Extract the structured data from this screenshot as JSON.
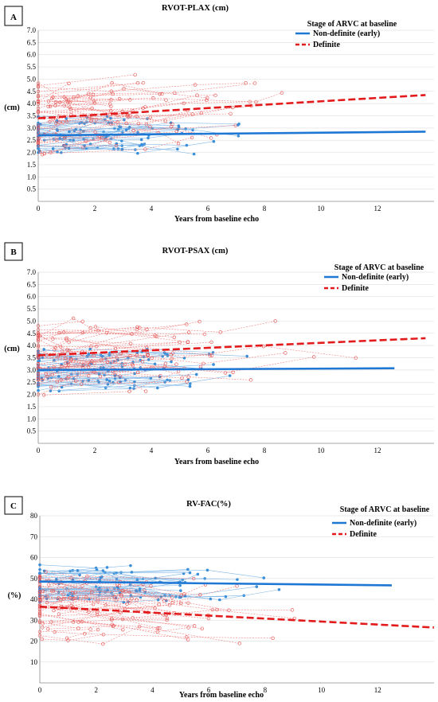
{
  "chart_data": [
    {
      "panel_label": "A",
      "type": "line",
      "title": "RVOT-PLAX (cm)",
      "xlabel": "Years from baseline echo",
      "ylabel": "(cm)",
      "xlim": [
        0,
        14
      ],
      "ylim": [
        0,
        7
      ],
      "x_ticks": [
        "0",
        "2",
        "4",
        "6",
        "8",
        "10",
        "12"
      ],
      "y_ticks": [
        "0.5",
        "1.0",
        "1.5",
        "2.0",
        "2.5",
        "3.0",
        "3.5",
        "4.0",
        "4.5",
        "5.0",
        "5.5",
        "6.0",
        "6.5",
        "7.0"
      ],
      "legend": {
        "title": "Stage of ARVC at baseline",
        "position": "top-right"
      },
      "series": [
        {
          "name": "Non-definite (early)",
          "color": "#1f77d4",
          "style": "solid",
          "trend": [
            [
              0,
              2.7
            ],
            [
              13.7,
              2.85
            ]
          ]
        },
        {
          "name": "Definite",
          "color": "#e31a1c",
          "style": "dashed",
          "trend": [
            [
              0,
              3.4
            ],
            [
              13.7,
              4.35
            ]
          ]
        }
      ]
    },
    {
      "panel_label": "B",
      "type": "line",
      "title": "RVOT-PSAX (cm)",
      "xlabel": "Years from baseline echo",
      "ylabel": "(cm)",
      "xlim": [
        0,
        14
      ],
      "ylim": [
        0,
        7
      ],
      "x_ticks": [
        "0",
        "2",
        "4",
        "6",
        "8",
        "10",
        "12"
      ],
      "y_ticks": [
        "0.5",
        "1.0",
        "1.5",
        "2.0",
        "2.5",
        "3.0",
        "3.5",
        "4.0",
        "4.5",
        "5.0",
        "5.5",
        "6.0",
        "6.5",
        "7.0"
      ],
      "legend": {
        "title": "Stage of ARVC at baseline",
        "position": "top-right"
      },
      "series": [
        {
          "name": "Non-definite (early)",
          "color": "#1f77d4",
          "style": "solid",
          "trend": [
            [
              0,
              3.0
            ],
            [
              12.6,
              3.07
            ]
          ]
        },
        {
          "name": "Definite",
          "color": "#e31a1c",
          "style": "dashed",
          "trend": [
            [
              0,
              3.6
            ],
            [
              13.7,
              4.3
            ]
          ]
        }
      ]
    },
    {
      "panel_label": "C",
      "type": "line",
      "title": "RV-FAC(%)",
      "xlabel": "Years from baseline echo",
      "ylabel": "(%)",
      "xlim": [
        0,
        14
      ],
      "ylim": [
        0,
        80
      ],
      "x_ticks": [
        "0",
        "2",
        "4",
        "6",
        "8",
        "10",
        "12"
      ],
      "y_ticks": [
        "10",
        "20",
        "30",
        "40",
        "50",
        "60",
        "70",
        "80"
      ],
      "legend": {
        "title": "Stage of ARVC at baseline",
        "position": "top-right"
      },
      "series": [
        {
          "name": "Non-definite (early)",
          "color": "#1f77d4",
          "style": "solid",
          "trend": [
            [
              0,
              48.5
            ],
            [
              12.5,
              46.7
            ]
          ]
        },
        {
          "name": "Definite",
          "color": "#e31a1c",
          "style": "dashed",
          "trend": [
            [
              0,
              36.5
            ],
            [
              14,
              26.5
            ]
          ]
        }
      ]
    }
  ]
}
